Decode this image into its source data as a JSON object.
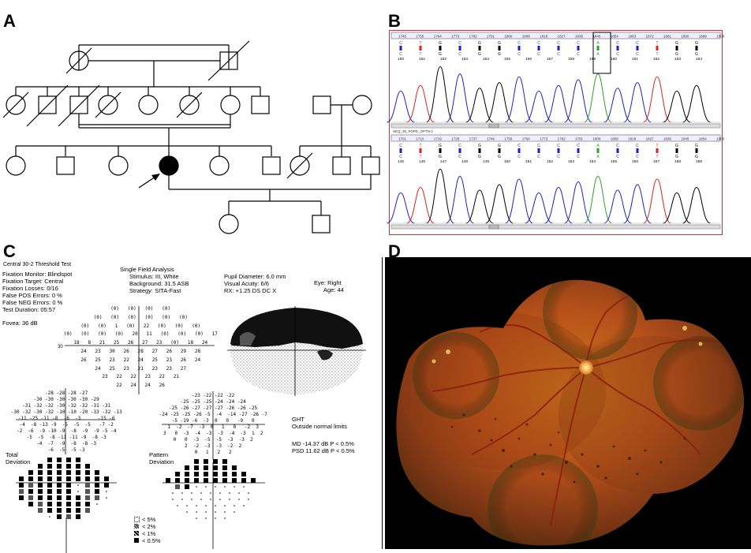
{
  "panels": {
    "a": "A",
    "b": "B",
    "c": "C",
    "d": "D"
  },
  "panel_b": {
    "top_positions": [
      "1746",
      "1755",
      "1764",
      "1773",
      "1782",
      "1791",
      "1800",
      "1809",
      "1818",
      "1827",
      "1836",
      "1845",
      "1854",
      "1863",
      "1872",
      "1881",
      "1890",
      "1899",
      "1908"
    ],
    "top_bases": [
      "C",
      "T",
      "G",
      "C",
      "G",
      "G",
      "C",
      "C",
      "C",
      "C",
      "A",
      "C",
      "C",
      "T",
      "G",
      "G"
    ],
    "top_index": [
      "150",
      "151",
      "152",
      "153",
      "154",
      "155",
      "156",
      "157",
      "158",
      "159",
      "160",
      "161",
      "162",
      "163",
      "164"
    ],
    "bottom_label": "SEQ_30_POPE_OPTN.4",
    "bottom_positions": [
      "1701",
      "1710",
      "1719",
      "1728",
      "1737",
      "1746",
      "1755",
      "1764",
      "1773",
      "1782",
      "1791",
      "1800",
      "1809",
      "1818",
      "1827",
      "1836",
      "1845",
      "1854",
      "1863"
    ],
    "bottom_bases": [
      "C",
      "T",
      "G",
      "C",
      "G",
      "G",
      "C",
      "C",
      "C",
      "C",
      "A",
      "C",
      "C",
      "T",
      "G",
      "G"
    ],
    "bottom_index": [
      "145",
      "146",
      "147",
      "148",
      "149",
      "150",
      "151",
      "152",
      "153",
      "154",
      "155",
      "156",
      "157",
      "158",
      "159"
    ],
    "base_colors": {
      "A": "#2ca02c",
      "C": "#1f1fd0",
      "G": "#000000",
      "T": "#e02020"
    }
  },
  "panel_c": {
    "test_title": "Central 30-2 Threshold Test",
    "left_params": [
      "Fixation Monitor: Blindspot",
      "Fixation Target: Central",
      "Fixation Losses: 0/16",
      "False POS Errors:  0 %",
      "False NEG Errors:  0 %",
      "Test Duration: 05:57"
    ],
    "fovea": "Fovea: 36 dB",
    "analysis_title": "Single Field Analysis",
    "mid_params": [
      "Stimulus: III, White",
      "Background: 31.5 ASB",
      "Strategy: SITA-Fast"
    ],
    "right_params": [
      "Pupil Diameter: 6.0 mm",
      "Visual Acuity: 6/6",
      "RX: +1.25 DS        DC  X"
    ],
    "eye": "Eye: Right",
    "age": "Age: 44",
    "threshold_rows": [
      "(0)   (0)   (0)   (0)",
      "(0)   (0)   (0)   (0)   (0)   (0)",
      "(0)   (0)   1   (0)   22   (0)   (0)   (0)",
      "(0)   (0)   (0)   (0)   20   11   (0)   (0)   (0)   17",
      "18   8   21   25   26   27   23   (0)   18   24",
      "24   23   30   26   28   27   26   29   28",
      "26   25   23   22   24   25   23   26   24",
      "24   25   23   21   23   23   27",
      "23   22   22   23   22   21",
      "22   24   24   26"
    ],
    "axis_30": "30",
    "total_dev_rows": [
      "-28 -28 -28 -27",
      "-30 -30 -30 -30 -30 -29",
      "-31 -32 -32 -30 -32 -32 -31 -31",
      "-30 -32 -30 -32 -10 -10 -20 -33 -32 -13",
      "-11 -25 -11 -8  -6  -3      -15 -6",
      "-4  -8 -13 -9  -5  -5  -5   -7 -2",
      "-2  -6  -9 -10 -9  -8  -9  -9 -5 -4",
      "-5  -5  -8 -11 -11 -9  -8 -3",
      "-4  -7  -9  -8  -8 -3",
      "-6  -5  -5 -3"
    ],
    "pattern_dev_rows": [
      "-23 -22 -22 -22",
      "-25 -25 -25 -24 -24 -24",
      "-25 -26 -27 -27 -27 -26 -26 -25",
      "-24 -25 -25 -26 -5  -4  -14 -27 -26 -7",
      "-5 -19 -6  -3  0   0   -9   0",
      "1  -2  -7  -3  0   1   0   -2  3",
      "3   0  -3  -4  -3  -3  -4  -3  1  2",
      "0   0  -3  -5  -5  -3  -3  2",
      "2  -2  -3  -3  -2  2",
      "0   1   2   2"
    ],
    "total_label": "Total\nDeviation",
    "pattern_label": "Pattern\nDeviation",
    "ght_label": "GHT",
    "ght_value": "Outside normal limits",
    "md": "MD    -14.37 dB  P < 0.5%",
    "psd": "PSD    11.62 dB  P < 0.5%",
    "legend": [
      "< 5%",
      "< 2%",
      "< 1%",
      "< 0.5%"
    ]
  },
  "panel_d": {}
}
